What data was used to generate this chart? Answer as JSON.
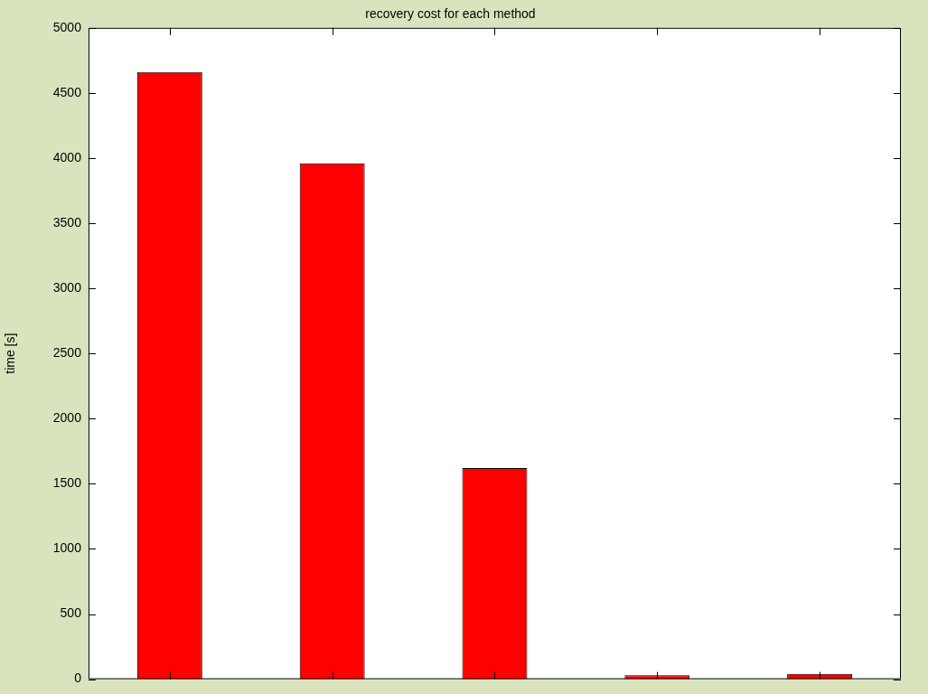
{
  "chart_data": {
    "type": "bar",
    "title": "recovery cost for each method",
    "ylabel": "time [s]",
    "categories": [
      null,
      null,
      null,
      null,
      null
    ],
    "values": [
      4660,
      3960,
      1620,
      30,
      40
    ],
    "color": "#ff0000",
    "ylim": [
      0,
      5000
    ],
    "yticks": [
      0,
      500,
      1000,
      1500,
      2000,
      2500,
      3000,
      3500,
      4000,
      4500,
      5000
    ],
    "grid": false,
    "legend": false
  }
}
